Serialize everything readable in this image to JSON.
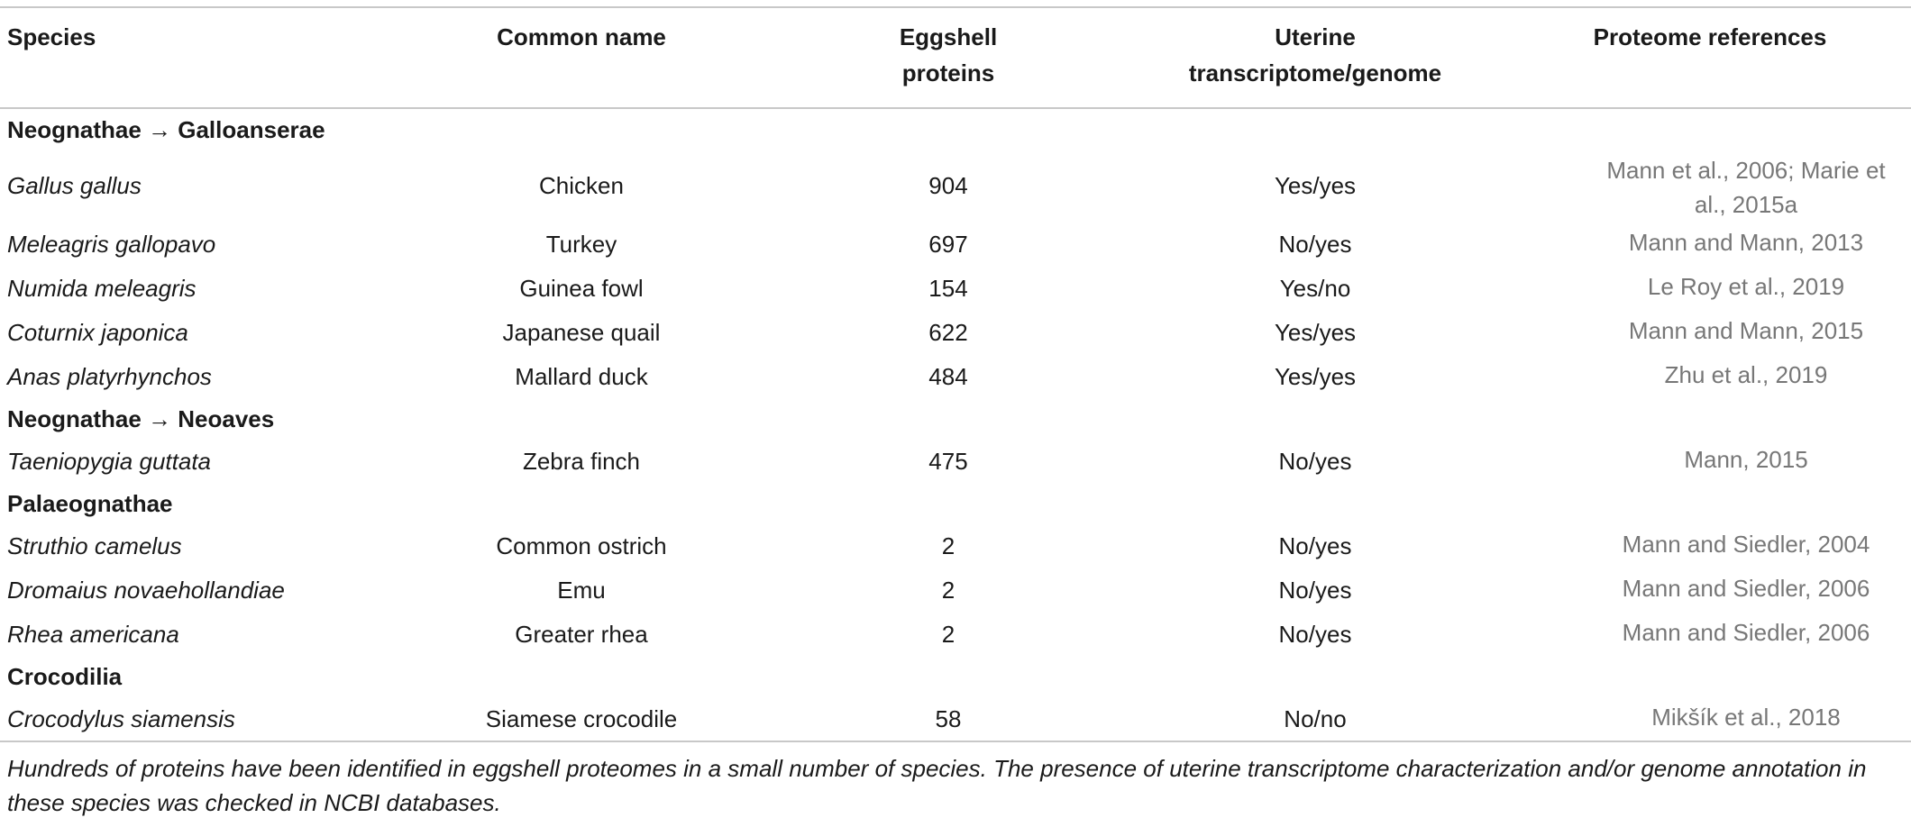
{
  "table": {
    "columns": [
      "Species",
      "Common name",
      "Eggshell proteins",
      "Uterine transcriptome/genome",
      "Proteome references"
    ],
    "groups": [
      {
        "label": "Neognathae → Galloanserae",
        "rows": [
          [
            "Gallus gallus",
            "Chicken",
            904,
            "Yes/yes",
            "Mann et al., 2006; Marie et al., 2015a"
          ],
          [
            "Meleagris gallopavo",
            "Turkey",
            697,
            "No/yes",
            "Mann and Mann, 2013"
          ],
          [
            "Numida meleagris",
            "Guinea fowl",
            154,
            "Yes/no",
            "Le Roy et al., 2019"
          ],
          [
            "Coturnix japonica",
            "Japanese quail",
            622,
            "Yes/yes",
            "Mann and Mann, 2015"
          ],
          [
            "Anas platyrhynchos",
            "Mallard duck",
            484,
            "Yes/yes",
            "Zhu et al., 2019"
          ]
        ]
      },
      {
        "label": "Neognathae → Neoaves",
        "rows": [
          [
            "Taeniopygia guttata",
            "Zebra finch",
            475,
            "No/yes",
            "Mann, 2015"
          ]
        ]
      },
      {
        "label": "Palaeognathae",
        "rows": [
          [
            "Struthio camelus",
            "Common ostrich",
            2,
            "No/yes",
            "Mann and Siedler, 2004"
          ],
          [
            "Dromaius novaehollandiae",
            "Emu",
            2,
            "No/yes",
            "Mann and Siedler, 2006"
          ],
          [
            "Rhea americana",
            "Greater rhea",
            2,
            "No/yes",
            "Mann and Siedler, 2006"
          ]
        ]
      },
      {
        "label": "Crocodilia",
        "rows": [
          [
            "Crocodylus siamensis",
            "Siamese crocodile",
            58,
            "No/no",
            "Mikšík et al., 2018"
          ]
        ]
      }
    ]
  },
  "caption": "Hundreds of proteins have been identified in eggshell proteomes in a small number of species. The presence of uterine transcriptome characterization and/or genome annotation in these species was checked in NCBI databases."
}
